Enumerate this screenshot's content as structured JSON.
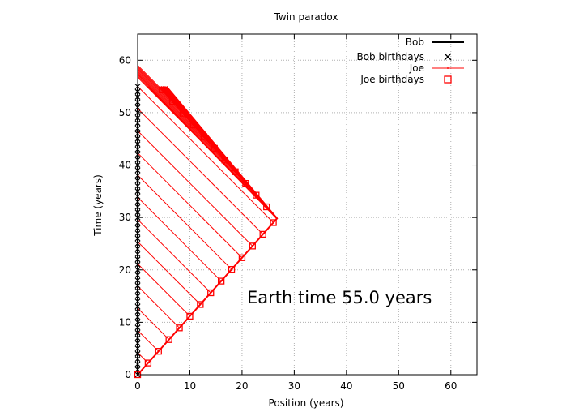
{
  "chart_data": {
    "type": "line",
    "title": "Twin paradox",
    "xlabel": "Position (years)",
    "ylabel": "Time (years)",
    "xlim": [
      0,
      65
    ],
    "ylim": [
      0,
      65
    ],
    "xticks": [
      0,
      10,
      20,
      30,
      40,
      50,
      60
    ],
    "yticks": [
      0,
      10,
      20,
      30,
      40,
      50,
      60
    ],
    "xtick_labels": [
      "0",
      "10",
      "20",
      "30",
      "40",
      "50",
      "60"
    ],
    "ytick_labels": [
      "0",
      "10",
      "20",
      "30",
      "40",
      "50",
      "60"
    ],
    "grid": true,
    "legend_position": "top-right",
    "annotation": "Earth time 55.0 years",
    "turnaround": {
      "x": 26.7,
      "t": 29.8
    },
    "joe_speed": 0.896,
    "series": [
      {
        "name": "Bob",
        "style": "line",
        "color": "#000000",
        "x": [
          0,
          0
        ],
        "y": [
          0,
          55
        ]
      },
      {
        "name": "Bob birthdays",
        "style": "points",
        "marker": "cross",
        "color": "#000000",
        "x": [
          0,
          0,
          0,
          0,
          0,
          0,
          0,
          0,
          0,
          0,
          0,
          0,
          0,
          0,
          0,
          0,
          0,
          0,
          0,
          0,
          0,
          0,
          0,
          0,
          0,
          0,
          0,
          0,
          0,
          0,
          0,
          0,
          0,
          0,
          0,
          0,
          0,
          0,
          0,
          0,
          0,
          0,
          0,
          0,
          0,
          0,
          0,
          0,
          0,
          0,
          0,
          0,
          0,
          0,
          0,
          0
        ],
        "y": [
          0,
          1,
          2,
          3,
          4,
          5,
          6,
          7,
          8,
          9,
          10,
          11,
          12,
          13,
          14,
          15,
          16,
          17,
          18,
          19,
          20,
          21,
          22,
          23,
          24,
          25,
          26,
          27,
          28,
          29,
          30,
          31,
          32,
          33,
          34,
          35,
          36,
          37,
          38,
          39,
          40,
          41,
          42,
          43,
          44,
          45,
          46,
          47,
          48,
          49,
          50,
          51,
          52,
          53,
          54,
          55
        ]
      },
      {
        "name": "Joe",
        "style": "line",
        "color": "#ff0000",
        "x": [
          0,
          26.7,
          2.05
        ],
        "y": [
          0,
          29.8,
          55
        ]
      },
      {
        "name": "Joe birthdays",
        "style": "points",
        "marker": "square",
        "color": "#ff0000",
        "x": [
          0,
          2.0,
          4.0,
          6.0,
          8.0,
          10.0,
          12.0,
          14.0,
          16.0,
          18.0,
          20.0,
          22.0,
          24.0,
          26.0,
          24.7,
          22.7,
          20.7,
          18.7,
          16.7,
          14.7,
          12.7,
          10.7,
          8.7,
          6.7,
          4.7
        ],
        "y": [
          0,
          2.23,
          4.46,
          6.7,
          8.93,
          11.16,
          13.39,
          15.63,
          17.86,
          20.09,
          22.32,
          24.55,
          26.79,
          29.02,
          32.03,
          34.26,
          36.5,
          38.73,
          40.96,
          43.19,
          45.42,
          47.66,
          49.89,
          52.12,
          54.35
        ]
      }
    ]
  }
}
